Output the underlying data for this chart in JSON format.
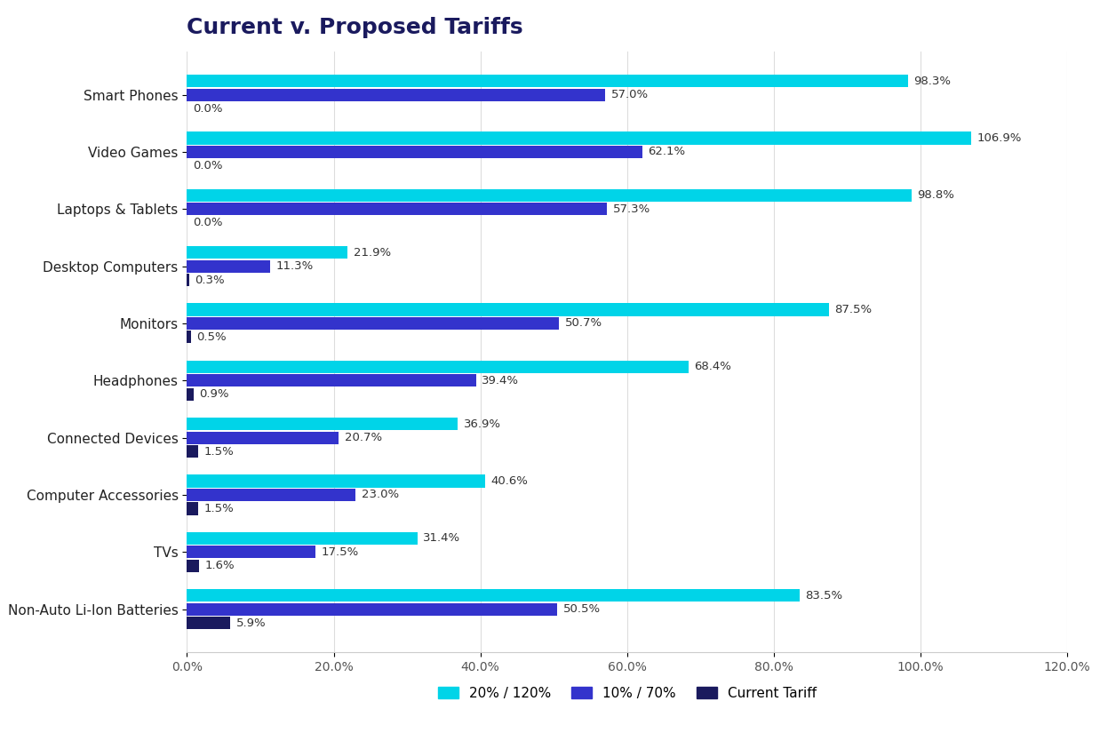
{
  "title": "Current v. Proposed Tariffs",
  "categories": [
    "Non-Auto Li-Ion Batteries",
    "TVs",
    "Computer Accessories",
    "Connected Devices",
    "Headphones",
    "Monitors",
    "Desktop Computers",
    "Laptops & Tablets",
    "Video Games",
    "Smart Phones"
  ],
  "series": {
    "20pct_120pct": [
      83.5,
      31.4,
      40.6,
      36.9,
      68.4,
      87.5,
      21.9,
      98.8,
      106.9,
      98.3
    ],
    "10pct_70pct": [
      50.5,
      17.5,
      23.0,
      20.7,
      39.4,
      50.7,
      11.3,
      57.3,
      62.1,
      57.0
    ],
    "current": [
      5.9,
      1.6,
      1.5,
      1.5,
      0.9,
      0.5,
      0.3,
      0.0,
      0.0,
      0.0
    ]
  },
  "colors": {
    "20pct_120pct": "#00D4E8",
    "10pct_70pct": "#3333CC",
    "current": "#1A1A5E"
  },
  "legend_labels": {
    "20pct_120pct": "20% / 120%",
    "10pct_70pct": "10% / 70%",
    "current": "Current Tariff"
  },
  "xlim": [
    0,
    120
  ],
  "xticks": [
    0,
    20,
    40,
    60,
    80,
    100,
    120
  ],
  "xtick_labels": [
    "0.0%",
    "20.0%",
    "40.0%",
    "60.0%",
    "80.0%",
    "100.0%",
    "120.0%"
  ],
  "background_color": "#FFFFFF",
  "border_color": "#CCCCCC",
  "title_color": "#1A1A5E",
  "title_fontsize": 18,
  "bar_height": 0.22,
  "bar_gap": 0.02,
  "label_fontsize": 9.5,
  "axis_label_color": "#555555",
  "grid_color": "#DDDDDD"
}
